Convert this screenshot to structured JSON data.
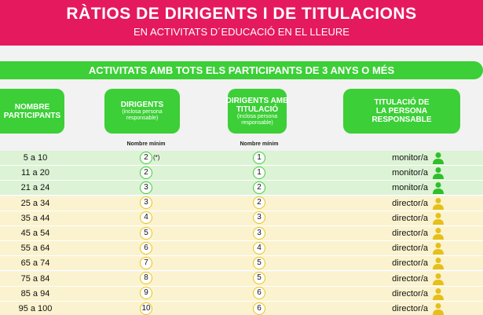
{
  "header": {
    "title": "RÀTIOS DE DIRIGENTS I DE TITULACIONS",
    "subtitle": "EN ACTIVITATS D´EDUCACIÓ EN EL LLEURE"
  },
  "banner": "ACTIVITATS AMB TOTS ELS PARTICIPANTS DE 3 ANYS O MÉS",
  "table": {
    "columns": [
      {
        "label": "NOMBRE PARTICIPANTS"
      },
      {
        "label": "DIRIGENTS",
        "note": "(inclosa persona responsable)",
        "sublabel": "Nombre mínim"
      },
      {
        "label": "DIRIGENTS AMB TITULACIÓ",
        "note": "(inclosa persona responsable)",
        "sublabel": "Nombre mínim"
      },
      {
        "label": "TITULACIÓ DE LA PERSONA RESPONSABLE"
      }
    ],
    "rows": [
      {
        "participants": "5 a 10",
        "dirigents": 2,
        "dirigents_mark": "(*)",
        "titulats": 1,
        "responsable": "monitor/a"
      },
      {
        "participants": "11 a 20",
        "dirigents": 2,
        "titulats": 1,
        "responsable": "monitor/a"
      },
      {
        "participants": "21 a 24",
        "dirigents": 3,
        "titulats": 2,
        "responsable": "monitor/a"
      },
      {
        "participants": "25 a 34",
        "dirigents": 3,
        "titulats": 2,
        "responsable": "director/a"
      },
      {
        "participants": "35 a 44",
        "dirigents": 4,
        "titulats": 3,
        "responsable": "director/a"
      },
      {
        "participants": "45 a 54",
        "dirigents": 5,
        "titulats": 3,
        "responsable": "director/a"
      },
      {
        "participants": "55 a 64",
        "dirigents": 6,
        "titulats": 4,
        "responsable": "director/a"
      },
      {
        "participants": "65 a 74",
        "dirigents": 7,
        "titulats": 5,
        "responsable": "director/a"
      },
      {
        "participants": "75 a 84",
        "dirigents": 8,
        "titulats": 5,
        "responsable": "director/a"
      },
      {
        "participants": "85 a 94",
        "dirigents": 9,
        "titulats": 6,
        "responsable": "director/a"
      },
      {
        "participants": "95 a 100",
        "dirigents": 10,
        "titulats": 6,
        "responsable": "director/a"
      }
    ]
  }
}
